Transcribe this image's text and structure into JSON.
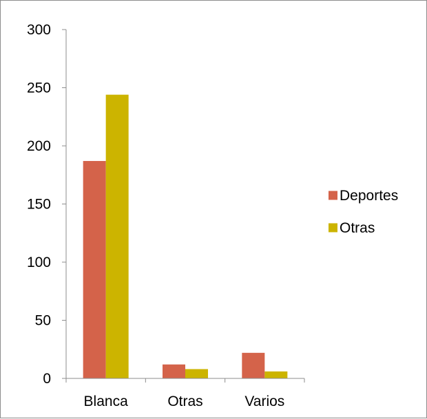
{
  "chart_data": {
    "type": "bar",
    "categories": [
      "Blanca",
      "Otras",
      "Varios"
    ],
    "series": [
      {
        "name": "Deportes",
        "values": [
          187,
          12,
          22
        ],
        "color": "#d4634a"
      },
      {
        "name": "Otras",
        "values": [
          244,
          8,
          6
        ],
        "color": "#ccb400"
      }
    ],
    "title": "",
    "xlabel": "",
    "ylabel": "",
    "ylim": [
      0,
      300
    ],
    "yticks": [
      0,
      50,
      100,
      150,
      200,
      250,
      300
    ],
    "grid": false,
    "legend_position": "right"
  }
}
